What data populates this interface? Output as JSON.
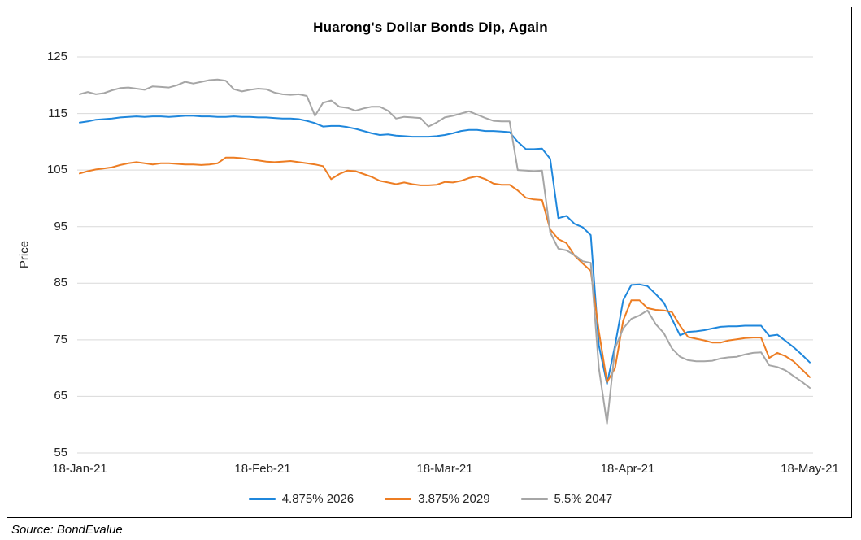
{
  "figure": {
    "source": "Source: BondEvalue"
  },
  "chart_data": {
    "type": "line",
    "title": "Huarong's Dollar Bonds Dip, Again",
    "xlabel": "",
    "ylabel": "Price",
    "ylim": [
      55,
      125
    ],
    "yticks": [
      125,
      115,
      105,
      95,
      85,
      75,
      65,
      55
    ],
    "xticks": [
      "18-Jan-21",
      "18-Feb-21",
      "18-Mar-21",
      "18-Apr-21",
      "18-May-21"
    ],
    "grid": "horizontal-only",
    "gridline_color": "#d9d9d9",
    "legend_position": "bottom",
    "x_note": "daily prices, points evenly spaced from 18-Jan-21 to 18-May-21",
    "series": [
      {
        "name": "4.875% 2026",
        "color": "#1f87dc",
        "values": [
          113.4,
          113.6,
          113.9,
          114.0,
          114.1,
          114.3,
          114.4,
          114.5,
          114.4,
          114.5,
          114.5,
          114.4,
          114.5,
          114.6,
          114.6,
          114.5,
          114.5,
          114.4,
          114.4,
          114.5,
          114.4,
          114.4,
          114.3,
          114.3,
          114.2,
          114.1,
          114.1,
          114.0,
          113.7,
          113.3,
          112.7,
          112.8,
          112.8,
          112.6,
          112.3,
          111.9,
          111.5,
          111.2,
          111.3,
          111.1,
          111.0,
          110.9,
          110.9,
          110.9,
          111.0,
          111.2,
          111.5,
          111.9,
          112.1,
          112.1,
          111.9,
          111.9,
          111.8,
          111.7,
          110.0,
          108.7,
          108.7,
          108.8,
          107.0,
          96.5,
          96.9,
          95.5,
          94.9,
          93.5,
          74.0,
          67.2,
          74.0,
          82.0,
          84.7,
          84.8,
          84.5,
          83.1,
          81.6,
          78.7,
          75.8,
          76.4,
          76.5,
          76.7,
          77.0,
          77.3,
          77.4,
          77.4,
          77.5,
          77.5,
          77.5,
          75.7,
          75.9,
          74.8,
          73.7,
          72.4,
          71.0
        ]
      },
      {
        "name": "3.875% 2029",
        "color": "#ed7d23",
        "values": [
          104.4,
          104.8,
          105.1,
          105.3,
          105.5,
          105.9,
          106.2,
          106.4,
          106.2,
          106.0,
          106.2,
          106.2,
          106.1,
          106.0,
          106.0,
          105.9,
          106.0,
          106.2,
          107.2,
          107.2,
          107.1,
          106.9,
          106.7,
          106.5,
          106.4,
          106.5,
          106.6,
          106.4,
          106.2,
          106.0,
          105.7,
          103.4,
          104.3,
          104.9,
          104.8,
          104.3,
          103.8,
          103.1,
          102.8,
          102.5,
          102.8,
          102.5,
          102.3,
          102.3,
          102.4,
          102.9,
          102.8,
          103.1,
          103.6,
          103.9,
          103.4,
          102.6,
          102.4,
          102.4,
          101.4,
          100.1,
          99.8,
          99.7,
          94.5,
          92.8,
          92.1,
          89.9,
          88.5,
          87.2,
          76.5,
          67.5,
          70.0,
          78.4,
          82.0,
          82.0,
          80.6,
          80.3,
          80.2,
          79.9,
          77.5,
          75.5,
          75.2,
          74.9,
          74.5,
          74.5,
          74.9,
          75.1,
          75.3,
          75.4,
          75.4,
          71.8,
          72.7,
          72.1,
          71.2,
          69.8,
          68.4
        ]
      },
      {
        "name": "5.5% 2047",
        "color": "#a6a6a6",
        "values": [
          118.4,
          118.8,
          118.4,
          118.6,
          119.1,
          119.5,
          119.6,
          119.4,
          119.2,
          119.8,
          119.7,
          119.6,
          120.0,
          120.6,
          120.3,
          120.6,
          120.9,
          121.0,
          120.8,
          119.3,
          118.9,
          119.2,
          119.4,
          119.3,
          118.7,
          118.4,
          118.3,
          118.4,
          118.1,
          114.6,
          116.9,
          117.3,
          116.2,
          116.0,
          115.5,
          115.9,
          116.2,
          116.2,
          115.5,
          114.1,
          114.4,
          114.3,
          114.2,
          112.7,
          113.4,
          114.3,
          114.6,
          115.0,
          115.4,
          114.8,
          114.2,
          113.7,
          113.6,
          113.6,
          105.0,
          104.9,
          104.8,
          104.9,
          94.0,
          91.1,
          90.8,
          90.0,
          88.9,
          88.6,
          70.0,
          60.2,
          73.5,
          77.0,
          78.7,
          79.3,
          80.2,
          77.8,
          76.2,
          73.5,
          72.0,
          71.4,
          71.2,
          71.2,
          71.3,
          71.7,
          71.9,
          72.0,
          72.4,
          72.7,
          72.8,
          70.5,
          70.2,
          69.6,
          68.6,
          67.6,
          66.5
        ]
      }
    ]
  }
}
